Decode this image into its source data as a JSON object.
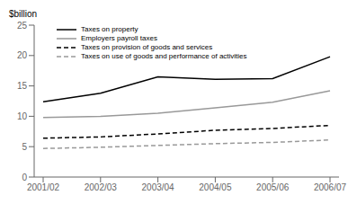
{
  "chart_data": {
    "type": "line",
    "y_label": "$billion",
    "categories": [
      "2001/02",
      "2002/03",
      "2003/04",
      "2004/05",
      "2005/06",
      "2006/07"
    ],
    "series": [
      {
        "name": "Taxes on property",
        "color": "#000000",
        "line_style": "solid",
        "values": [
          12.4,
          13.8,
          16.5,
          16.1,
          16.2,
          19.8
        ]
      },
      {
        "name": "Employers payroll taxes",
        "color": "#999999",
        "line_style": "solid",
        "values": [
          9.8,
          10.0,
          10.5,
          11.4,
          12.3,
          14.2
        ]
      },
      {
        "name": "Taxes on provision of goods and services",
        "color": "#000000",
        "line_style": "dashed",
        "values": [
          6.4,
          6.6,
          7.1,
          7.7,
          8.0,
          8.5
        ]
      },
      {
        "name": "Taxes on use of goods and performance of activities",
        "color": "#999999",
        "line_style": "dashed",
        "values": [
          4.7,
          4.9,
          5.2,
          5.5,
          5.7,
          6.1
        ]
      }
    ],
    "ylim": [
      0,
      25
    ],
    "yticks": [
      0,
      5,
      10,
      15,
      20,
      25
    ],
    "grid": false,
    "legend": "upper left"
  }
}
